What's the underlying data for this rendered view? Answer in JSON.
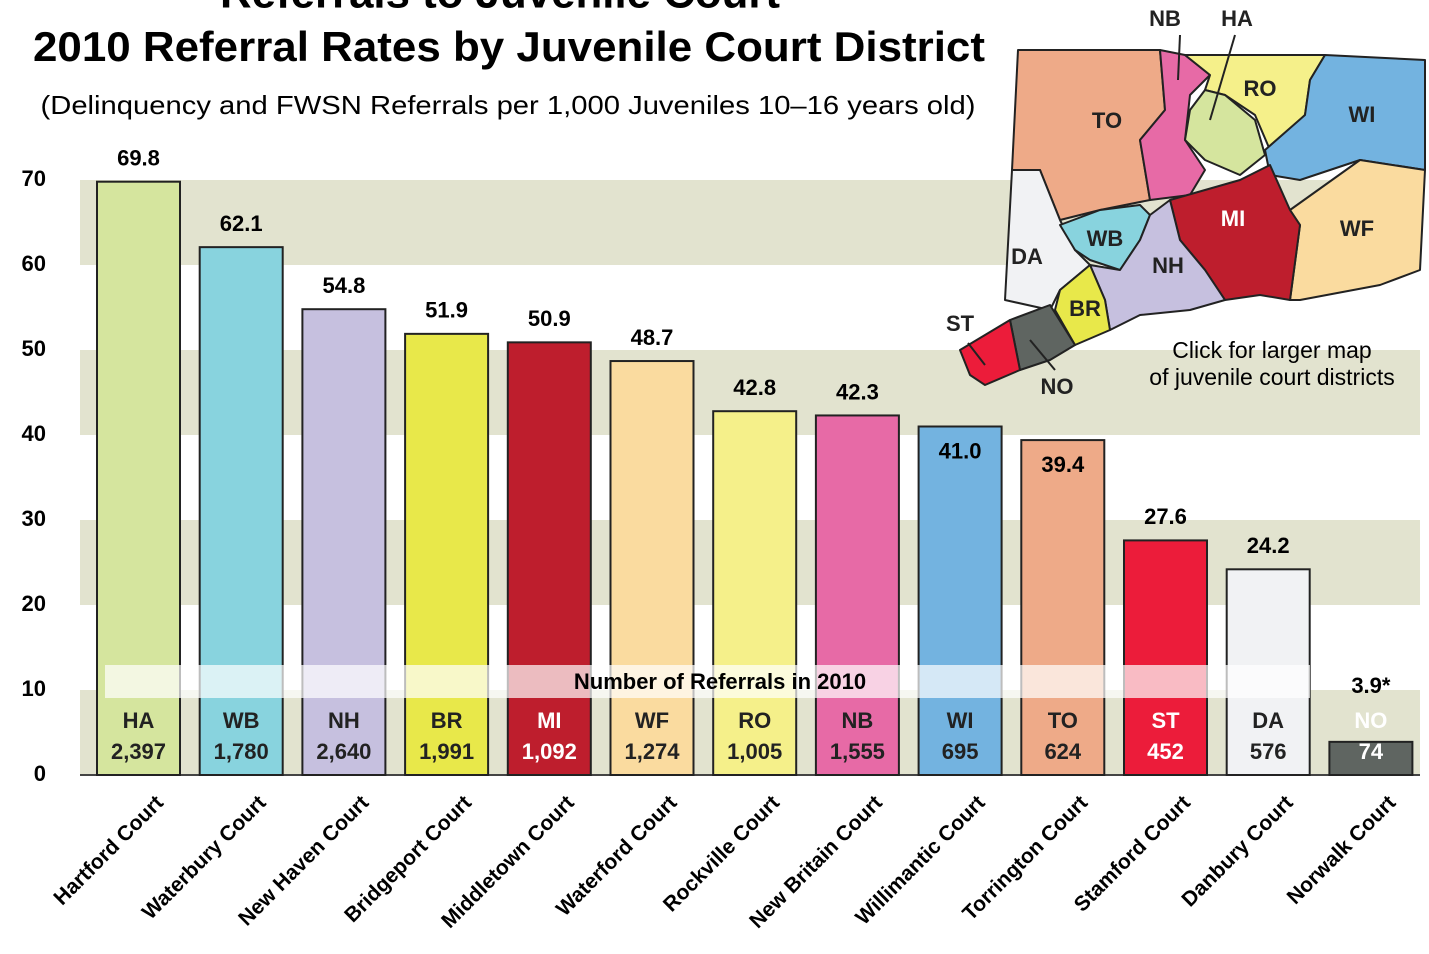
{
  "chart_data": {
    "type": "bar",
    "title": "Referrals to Juvenile Court",
    "subtitle": "2010 Referral Rates by Juvenile Court District",
    "description": "(Delinquency and FWSN Referrals per 1,000 Juveniles 10–16 years old)",
    "categories": [
      "Hartford Court",
      "Waterbury Court",
      "New Haven Court",
      "Bridgeport Court",
      "Middletown Court",
      "Waterford Court",
      "Rockville Court",
      "New Britain Court",
      "Willimantic Court",
      "Torrington Court",
      "Stamford Court",
      "Danbury Court",
      "Norwalk Court"
    ],
    "codes": [
      "HA",
      "WB",
      "NH",
      "BR",
      "MI",
      "WF",
      "RO",
      "NB",
      "WI",
      "TO",
      "ST",
      "DA",
      "NO"
    ],
    "values": [
      69.8,
      62.1,
      54.8,
      51.9,
      50.9,
      48.7,
      42.8,
      42.3,
      41.0,
      39.4,
      27.6,
      24.2,
      3.9
    ],
    "value_labels": [
      "69.8",
      "62.1",
      "54.8",
      "51.9",
      "50.9",
      "48.7",
      "42.8",
      "42.3",
      "41.0",
      "39.4",
      "27.6",
      "24.2",
      "3.9*"
    ],
    "colors": [
      "#d5e59e",
      "#88d3de",
      "#c6c0df",
      "#e8e84a",
      "#be1e2d",
      "#fadb9f",
      "#f5f08a",
      "#e76aa6",
      "#73b3e0",
      "#eeaa88",
      "#ec1c3a",
      "#f1f2f4",
      "#5f6561"
    ],
    "referrals_title": "Number of Referrals in 2010",
    "referrals": [
      {
        "value": 2397,
        "label": "2,397"
      },
      {
        "value": 1780,
        "label": "1,780"
      },
      {
        "value": 2640,
        "label": "2,640"
      },
      {
        "value": 1991,
        "label": "1,991"
      },
      {
        "value": 1092,
        "label": "1,092"
      },
      {
        "value": 1274,
        "label": "1,274"
      },
      {
        "value": 1005,
        "label": "1,005"
      },
      {
        "value": 1555,
        "label": "1,555"
      },
      {
        "value": 695,
        "label": "695"
      },
      {
        "value": 624,
        "label": "624"
      },
      {
        "value": 452,
        "label": "452"
      },
      {
        "value": 576,
        "label": "576"
      },
      {
        "value": 74,
        "label": "74"
      }
    ],
    "ylim": [
      0,
      70
    ],
    "yticks": [
      0,
      10,
      20,
      30,
      40,
      50,
      60,
      70
    ],
    "map_note": [
      "Click for larger map",
      "of juvenile court districts"
    ]
  }
}
